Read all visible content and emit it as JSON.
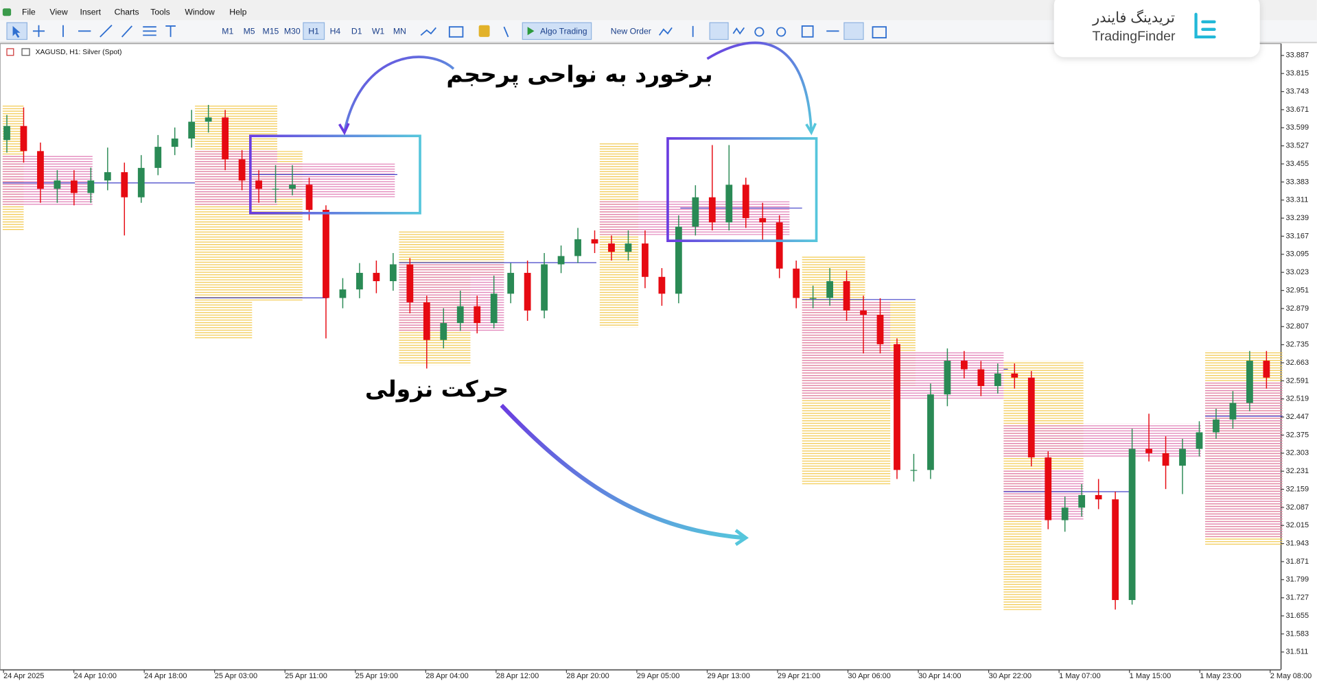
{
  "menu": [
    "File",
    "View",
    "Insert",
    "Charts",
    "Tools",
    "Window",
    "Help"
  ],
  "toolbar": {
    "timeframes": [
      "M1",
      "M5",
      "M15",
      "M30",
      "H1",
      "H4",
      "D1",
      "W1",
      "MN"
    ],
    "active_timeframe": 4,
    "algo_trading": "Algo Trading",
    "new_order": "New Order"
  },
  "logo": {
    "name_fa": "تریدینگ فایندر",
    "name_en": "TradingFinder"
  },
  "annotations": {
    "zones": "برخورد به نواحی پرحجم",
    "move": "حرکت نزولی"
  },
  "chart_data": {
    "type": "candlestick",
    "symbol_label": "XAGUSD, H1:  Silver (Spot)",
    "up_color": "#2a8a55",
    "down_color": "#e60a12",
    "grid": false,
    "ylim": [
      31.441,
      33.934
    ],
    "yticks": [
      33.887,
      33.815,
      33.743,
      33.671,
      33.599,
      33.527,
      33.455,
      33.383,
      33.311,
      33.239,
      33.167,
      33.095,
      33.023,
      32.951,
      32.879,
      32.807,
      32.735,
      32.663,
      32.591,
      32.519,
      32.447,
      32.375,
      32.303,
      32.231,
      32.159,
      32.087,
      32.015,
      31.943,
      31.871,
      31.799,
      31.727,
      31.655,
      31.583,
      31.511
    ],
    "time_labels": [
      "24 Apr 2025",
      "24 Apr 10:00",
      "24 Apr 18:00",
      "25 Apr 03:00",
      "25 Apr 11:00",
      "25 Apr 19:00",
      "28 Apr 04:00",
      "28 Apr 12:00",
      "28 Apr 20:00",
      "29 Apr 05:00",
      "29 Apr 13:00",
      "29 Apr 21:00",
      "30 Apr 06:00",
      "30 Apr 14:00",
      "30 Apr 22:00",
      "1 May 07:00",
      "1 May 15:00",
      "1 May 23:00",
      "2 May 08:00"
    ],
    "open": [
      33.55,
      33.606,
      33.506,
      33.356,
      33.389,
      33.339,
      33.389,
      33.422,
      33.322,
      33.439,
      33.523,
      33.556,
      33.623,
      33.64,
      33.473,
      33.389,
      33.356,
      33.356,
      33.372,
      33.272,
      32.921,
      32.955,
      33.021,
      32.988,
      33.055,
      32.904,
      32.754,
      32.821,
      32.888,
      32.821,
      32.938,
      33.021,
      32.871,
      33.055,
      33.088,
      33.155,
      33.138,
      33.105,
      33.138,
      33.005,
      32.938,
      33.205,
      33.322,
      33.222,
      33.372,
      33.239,
      33.222,
      33.038,
      32.921,
      32.921,
      32.988,
      32.871,
      32.854,
      32.737,
      32.236,
      32.236,
      32.537,
      32.671,
      32.637,
      32.57,
      32.62,
      32.604,
      32.286,
      32.036,
      32.086,
      32.136,
      32.119,
      31.718,
      32.32,
      32.303,
      32.253,
      32.32,
      32.386,
      32.437,
      32.503,
      32.671
    ],
    "high": [
      33.65,
      33.68,
      33.54,
      33.43,
      33.43,
      33.44,
      33.52,
      33.46,
      33.49,
      33.57,
      33.6,
      33.67,
      33.69,
      33.67,
      33.51,
      33.43,
      33.45,
      33.45,
      33.4,
      33.29,
      33.0,
      33.06,
      33.07,
      33.1,
      33.08,
      32.93,
      32.88,
      32.95,
      32.93,
      33.01,
      33.06,
      33.07,
      33.1,
      33.13,
      33.2,
      33.19,
      33.17,
      33.19,
      33.19,
      33.04,
      33.25,
      33.37,
      33.53,
      33.53,
      33.4,
      33.3,
      33.25,
      33.07,
      32.97,
      33.04,
      33.03,
      32.93,
      32.92,
      32.76,
      32.3,
      32.58,
      32.72,
      32.71,
      32.67,
      32.66,
      32.66,
      32.63,
      32.31,
      32.13,
      32.18,
      32.2,
      32.15,
      32.4,
      32.46,
      32.37,
      32.36,
      32.43,
      32.48,
      32.55,
      32.71,
      32.71
    ],
    "low": [
      33.5,
      33.46,
      33.3,
      33.3,
      33.29,
      33.3,
      33.35,
      33.17,
      33.3,
      33.41,
      33.49,
      33.52,
      33.58,
      33.43,
      33.35,
      33.3,
      33.3,
      33.33,
      33.23,
      32.76,
      32.88,
      32.92,
      32.94,
      32.95,
      32.86,
      32.64,
      32.72,
      32.79,
      32.78,
      32.8,
      32.9,
      32.83,
      32.84,
      33.02,
      33.06,
      33.1,
      33.07,
      33.07,
      32.96,
      32.89,
      32.9,
      33.17,
      33.19,
      33.19,
      33.2,
      33.15,
      33.0,
      32.88,
      32.88,
      32.89,
      32.83,
      32.7,
      32.7,
      32.2,
      32.19,
      32.2,
      32.49,
      32.6,
      32.53,
      32.54,
      32.56,
      32.25,
      32.0,
      31.99,
      32.05,
      32.08,
      31.68,
      31.7,
      32.27,
      32.16,
      32.14,
      32.29,
      32.36,
      32.4,
      32.47,
      32.56
    ],
    "close": [
      33.606,
      33.506,
      33.356,
      33.389,
      33.339,
      33.389,
      33.422,
      33.322,
      33.439,
      33.523,
      33.556,
      33.623,
      33.64,
      33.473,
      33.389,
      33.356,
      33.356,
      33.372,
      33.272,
      32.921,
      32.955,
      33.021,
      32.988,
      33.055,
      32.904,
      32.754,
      32.821,
      32.888,
      32.821,
      32.938,
      33.021,
      32.871,
      33.055,
      33.088,
      33.155,
      33.138,
      33.105,
      33.138,
      33.005,
      32.938,
      33.205,
      33.322,
      33.222,
      33.372,
      33.239,
      33.222,
      33.038,
      32.921,
      32.921,
      32.988,
      32.871,
      32.854,
      32.737,
      32.236,
      32.236,
      32.537,
      32.671,
      32.637,
      32.57,
      32.62,
      32.604,
      32.286,
      32.036,
      32.086,
      32.136,
      32.119,
      31.718,
      32.32,
      32.303,
      32.253,
      32.32,
      32.386,
      32.437,
      32.503,
      32.671,
      32.604
    ]
  }
}
